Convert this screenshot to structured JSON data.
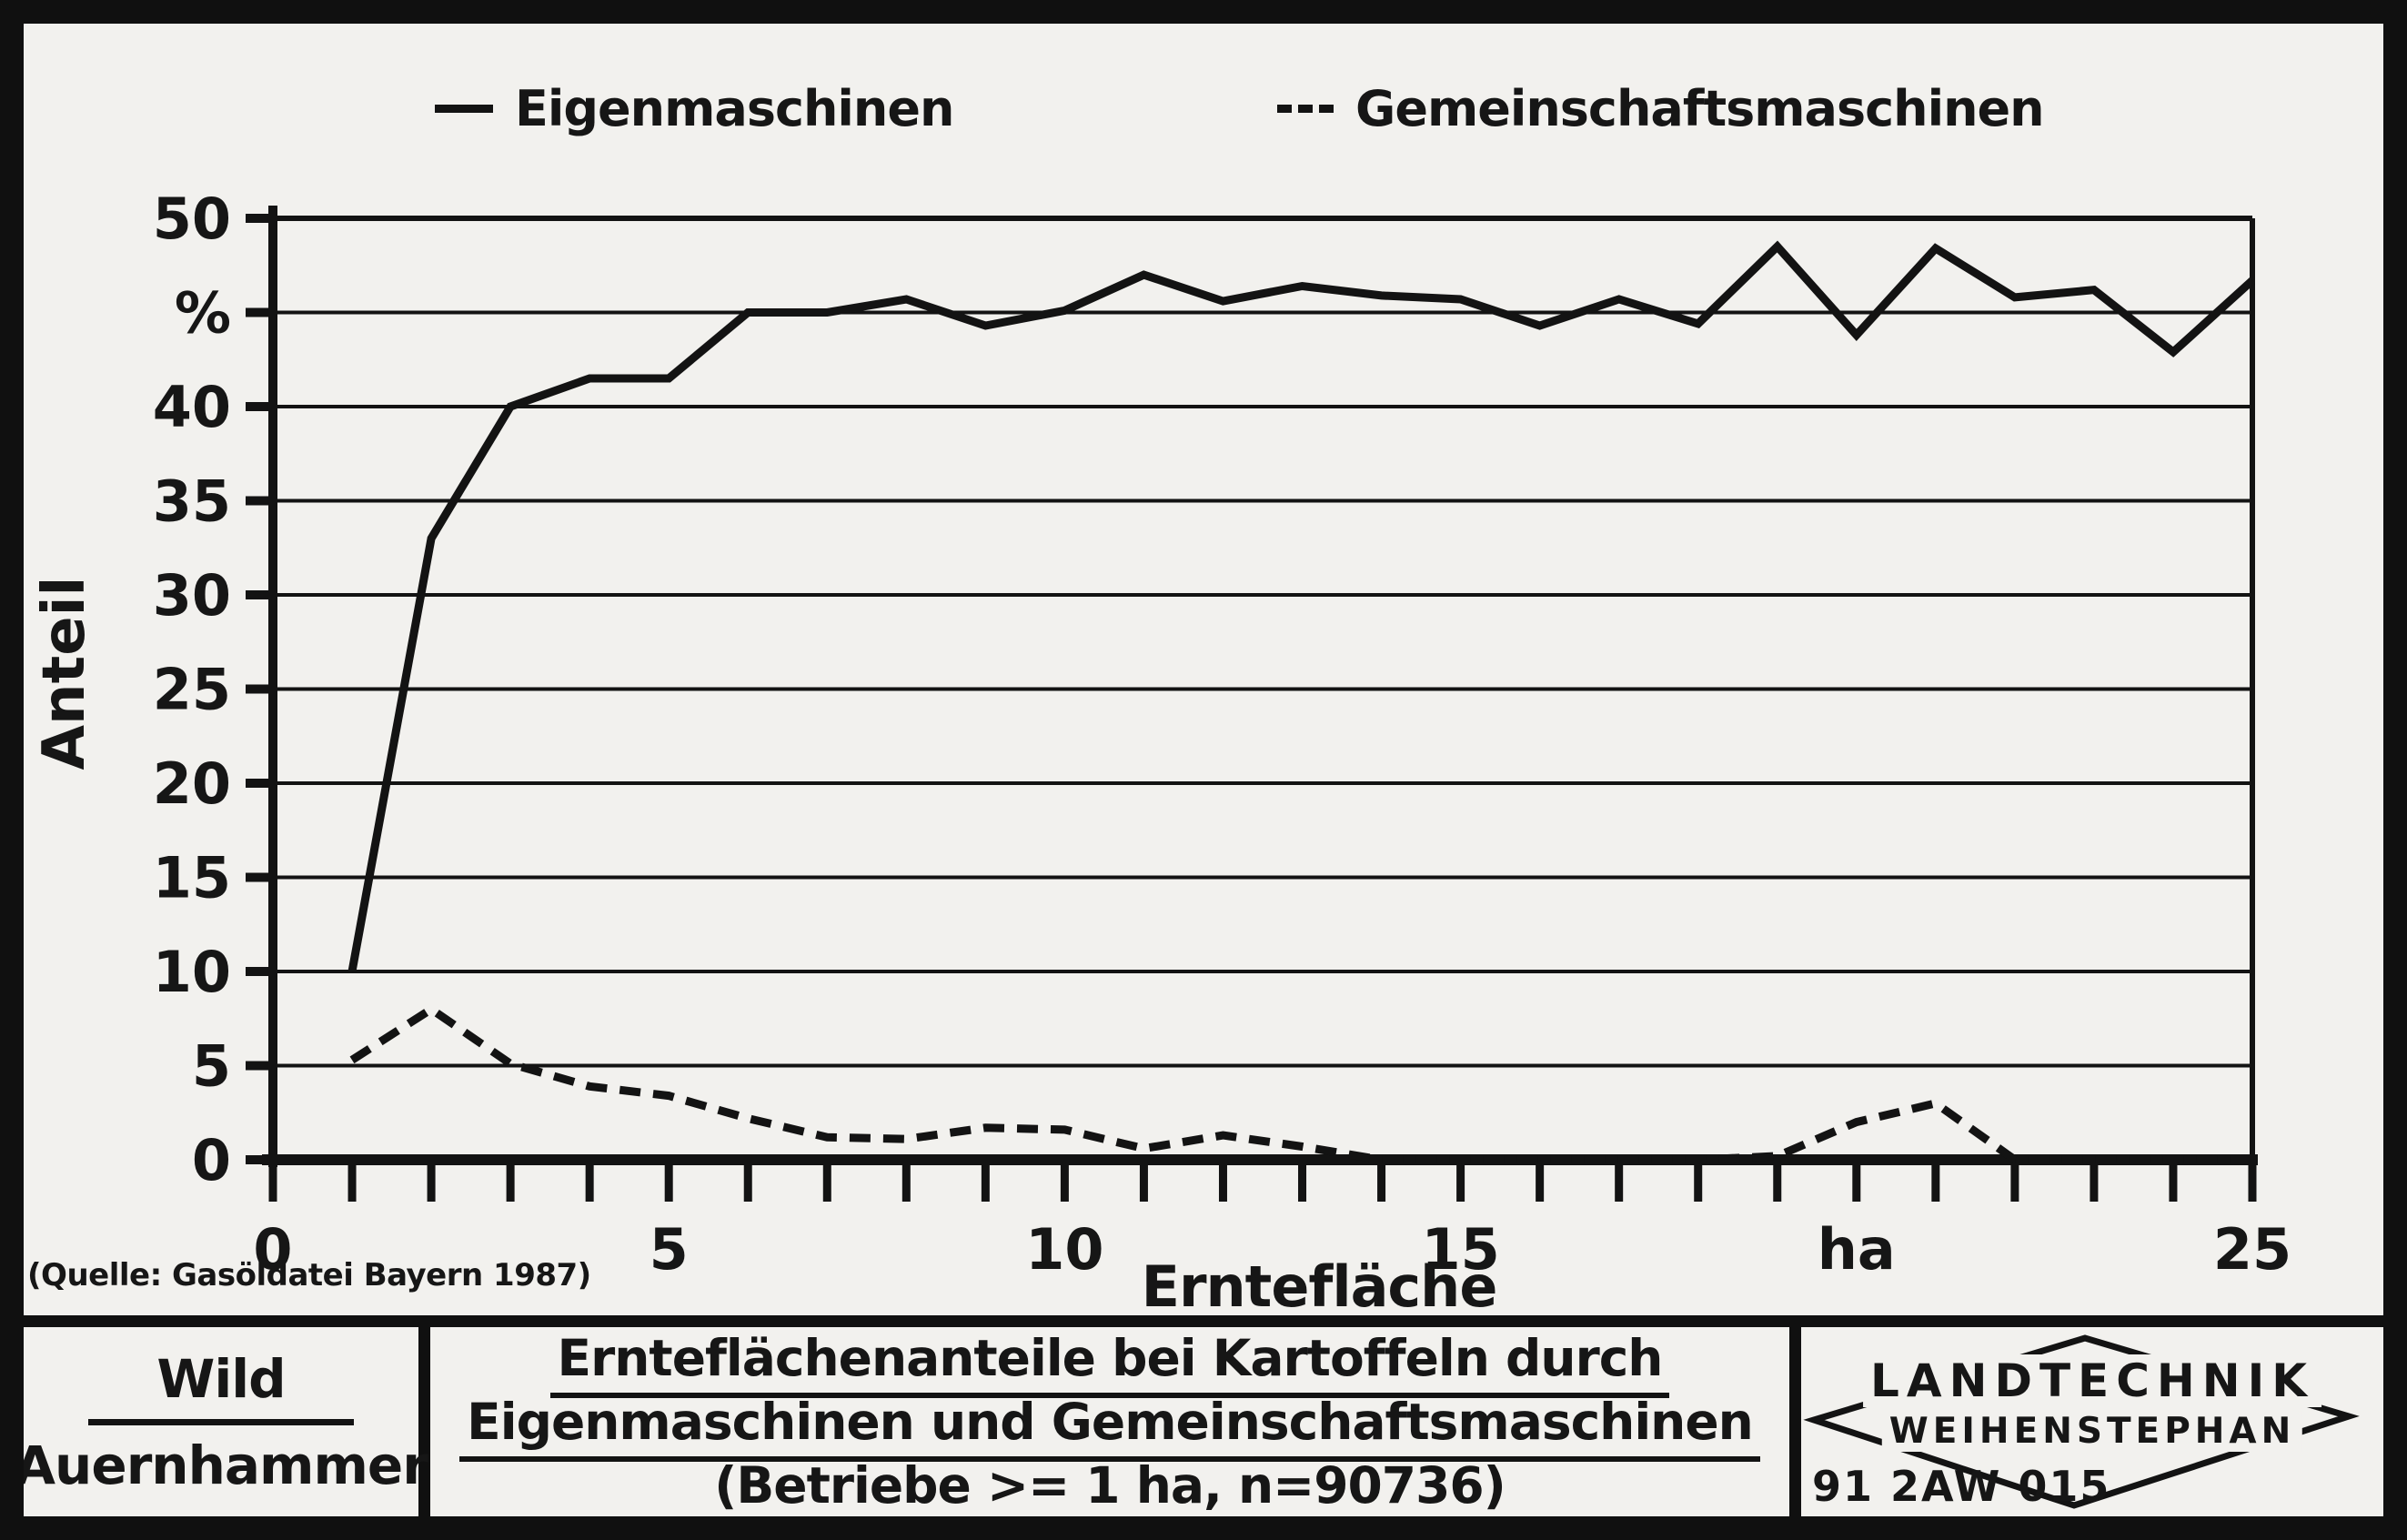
{
  "colors": {
    "paper": "#f2f1ee",
    "ink": "#131313"
  },
  "legend": {
    "items": [
      {
        "label": "Eigenmaschinen",
        "style": "solid"
      },
      {
        "label": "Gemeinschaftsmaschinen",
        "style": "dashed"
      }
    ]
  },
  "chart_data": {
    "type": "line",
    "title": "Ernteflächenanteile bei Kartoffeln durch Eigenmaschinen und Gemeinschaftsmaschinen",
    "xlabel": "Erntefläche",
    "ylabel": "Anteil",
    "x_unit": "ha",
    "y_unit": "%",
    "xlim": [
      0,
      25
    ],
    "ylim": [
      0,
      50
    ],
    "grid": "horizontal gridlines every 5 units",
    "legend_position": "top",
    "x_minor_tick_step": 1,
    "x_major_ticks": [
      {
        "v": 0,
        "label": "0"
      },
      {
        "v": 5,
        "label": "5"
      },
      {
        "v": 10,
        "label": "10"
      },
      {
        "v": 15,
        "label": "15"
      },
      {
        "v": 20,
        "label": "ha"
      },
      {
        "v": 25,
        "label": "25"
      }
    ],
    "y_ticks": [
      {
        "v": 0,
        "label": "0"
      },
      {
        "v": 5,
        "label": "5"
      },
      {
        "v": 10,
        "label": "10"
      },
      {
        "v": 15,
        "label": "15"
      },
      {
        "v": 20,
        "label": "20"
      },
      {
        "v": 25,
        "label": "25"
      },
      {
        "v": 30,
        "label": "30"
      },
      {
        "v": 35,
        "label": "35"
      },
      {
        "v": 40,
        "label": "40"
      },
      {
        "v": 45,
        "label": "%"
      },
      {
        "v": 50,
        "label": "50"
      }
    ],
    "x": [
      1,
      2,
      3,
      4,
      5,
      6,
      7,
      8,
      9,
      10,
      11,
      12,
      13,
      14,
      15,
      16,
      17,
      18,
      19,
      20,
      21,
      22,
      23,
      24,
      25
    ],
    "series": [
      {
        "name": "Eigenmaschinen",
        "line": "solid",
        "values": [
          10,
          33,
          40,
          41.5,
          41.5,
          45,
          45,
          45.7,
          44.3,
          45.1,
          47,
          45.6,
          46.4,
          45.9,
          45.7,
          44.3,
          45.7,
          44.4,
          48.5,
          43.8,
          48.4,
          45.8,
          46.2,
          42.9,
          46.7
        ]
      },
      {
        "name": "Gemeinschaftsmaschinen",
        "line": "dashed",
        "values": [
          5.3,
          8,
          5.1,
          3.9,
          3.4,
          2.2,
          1.2,
          1.1,
          1.7,
          1.6,
          0.6,
          1.3,
          0.7,
          0,
          0,
          0,
          0,
          0,
          0.2,
          2,
          3,
          0,
          0,
          0,
          0
        ]
      }
    ]
  },
  "source_note": "(Quelle: Gasöldatei Bayern 1987)",
  "footer": {
    "author_top": "Wild",
    "author_bottom": "Auernhammer",
    "title_lines": [
      "Ernteflächenanteile bei Kartoffeln durch",
      "Eigenmaschinen und Gemeinschaftsmaschinen",
      "(Betriebe >= 1 ha, n=90736)"
    ],
    "logo_line1": "LANDTECHNIK",
    "logo_line2": "WEIHENSTEPHAN",
    "doc_code": "91 2AW 015"
  }
}
